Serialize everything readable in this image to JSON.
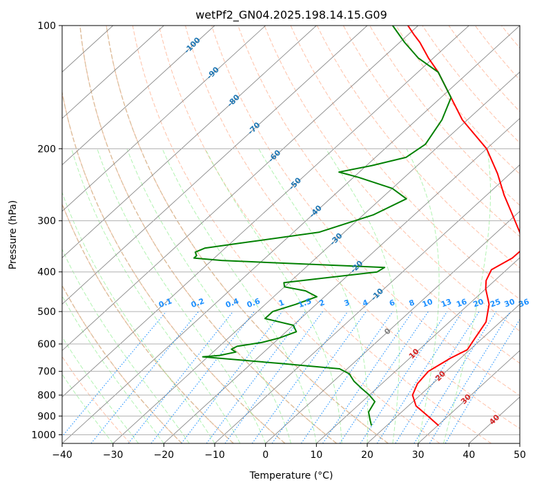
{
  "chart_data": {
    "type": "line",
    "title": "wetPf2_GN04.2025.198.14.15.G09",
    "xlabel": "Temperature (°C)",
    "ylabel": "Pressure (hPa)",
    "xlim": [
      -40,
      50
    ],
    "ylim": [
      1050,
      100
    ],
    "y_scale": "log",
    "x_ticks": [
      "−40",
      "−30",
      "−20",
      "−10",
      "0",
      "10",
      "20",
      "30",
      "40",
      "50"
    ],
    "y_ticks": [
      "100",
      "200",
      "300",
      "400",
      "500",
      "600",
      "700",
      "800",
      "900",
      "1000"
    ],
    "grid": true,
    "series": [
      {
        "color": "#ff0000",
        "pressure": [
          950,
          900,
          850,
          800,
          750,
          700,
          650,
          620,
          580,
          530,
          480,
          440,
          420,
          395,
          370,
          350,
          320,
          290,
          260,
          230,
          200,
          170,
          150,
          130,
          120,
          110,
          105,
          100
        ],
        "temperature": [
          30.2,
          26,
          21.5,
          18.5,
          17,
          16.5,
          18,
          19.5,
          18.5,
          17.2,
          14,
          10,
          8.3,
          7,
          8.6,
          8.7,
          4.5,
          -0.7,
          -6.5,
          -12.5,
          -20,
          -31,
          -38,
          -46,
          -51,
          -56,
          -59,
          -62
        ]
      },
      {
        "color": "#008000",
        "pressure": [
          950,
          920,
          880,
          830,
          800,
          770,
          740,
          710,
          690,
          670,
          645,
          640,
          628,
          618,
          608,
          595,
          580,
          560,
          540,
          520,
          500,
          480,
          460,
          445,
          435,
          425,
          400,
          390,
          380,
          375,
          370,
          365,
          358,
          350,
          340,
          320,
          290,
          265,
          250,
          235,
          228,
          220,
          210,
          195,
          170,
          150,
          130,
          120,
          110,
          100
        ],
        "temperature": [
          17,
          15.5,
          13.5,
          12.5,
          10,
          7,
          4,
          1.5,
          -1.5,
          -14,
          -31,
          -28,
          -25.5,
          -27,
          -26.5,
          -22.5,
          -20,
          -18,
          -20,
          -27,
          -27,
          -24,
          -21.5,
          -25,
          -30,
          -31,
          -15,
          -14.5,
          -37,
          -48,
          -54,
          -54,
          -55,
          -54,
          -48,
          -35,
          -28,
          -25,
          -30,
          -39,
          -44,
          -39,
          -34,
          -33,
          -35,
          -38,
          -46,
          -53,
          -59,
          -65
        ]
      }
    ],
    "isotherm_labels": [
      "-100",
      "-90",
      "-80",
      "-70",
      "-60",
      "-50",
      "-40",
      "-30",
      "-20",
      "-10",
      "0",
      "10",
      "20",
      "30",
      "40"
    ],
    "mixing_ratio_labels": [
      "0.1",
      "0.2",
      "0.4",
      "0.6",
      "1",
      "1.5",
      "2",
      "3",
      "4",
      "6",
      "8",
      "10",
      "13",
      "16",
      "20",
      "25",
      "30",
      "36"
    ],
    "mixing_ratio_values": [
      0.1,
      0.2,
      0.4,
      0.6,
      1,
      1.5,
      2,
      3,
      4,
      6,
      8,
      10,
      13,
      16,
      20,
      25,
      30,
      36
    ],
    "dry_adiabat_thetas_C": [
      -30,
      -20,
      -10,
      0,
      10,
      20,
      30,
      40,
      50,
      60,
      70,
      80,
      90,
      100,
      110,
      120,
      130,
      140,
      150,
      160,
      170,
      180,
      190,
      200,
      210,
      220,
      230
    ],
    "moist_adiabat_start_C": [
      -30,
      -25,
      -20,
      -15,
      -10,
      -5,
      0,
      5,
      10,
      15,
      20,
      25,
      30,
      35
    ],
    "colors": {
      "temperature": "#ff0000",
      "dewpoint": "#008000",
      "isotherm": "#000000",
      "isotherm_label_cold": "#1f77b4",
      "isotherm_label_zero": "#7f7f7f",
      "isotherm_label_warm": "#d62728",
      "dry_adiabat": "#ffa07a",
      "moist_adiabat": "#90ee90",
      "mixing_ratio": "#1e90ff",
      "special_dry_adiabat": "#d2b48c"
    }
  }
}
